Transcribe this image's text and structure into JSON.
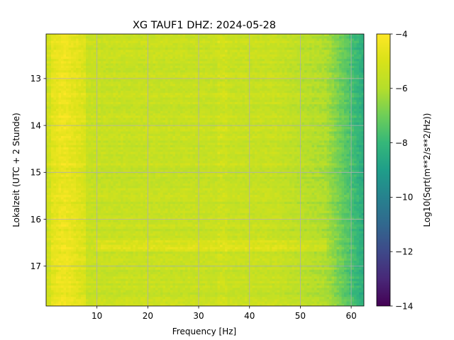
{
  "chart_data": {
    "type": "heatmap",
    "title": "XG TAUF1  DHZ: 2024-05-28",
    "xlabel": "Frequency [Hz]",
    "ylabel": "Lokalzeit (UTC + 2 Stunde)",
    "colorbar_label": "Log10(Sqrt(m**2/s**2/Hz))",
    "colormap": "viridis",
    "x_range": [
      0,
      62.5
    ],
    "y_range": [
      12.05,
      17.85
    ],
    "y_inverted": true,
    "x_ticks": [
      10,
      20,
      30,
      40,
      50,
      60
    ],
    "y_ticks": [
      13,
      14,
      15,
      16,
      17
    ],
    "color_range": [
      -14,
      -4
    ],
    "colorbar_ticks": [
      -4,
      -6,
      -8,
      -10,
      -12,
      -14
    ],
    "colorbar_tick_labels": [
      "−4",
      "−6",
      "−8",
      "−10",
      "−12",
      "−14"
    ],
    "grid": true,
    "x_tick_labels": [
      "10",
      "20",
      "30",
      "40",
      "50",
      "60"
    ],
    "y_tick_labels": [
      "13",
      "14",
      "15",
      "16",
      "17"
    ]
  }
}
